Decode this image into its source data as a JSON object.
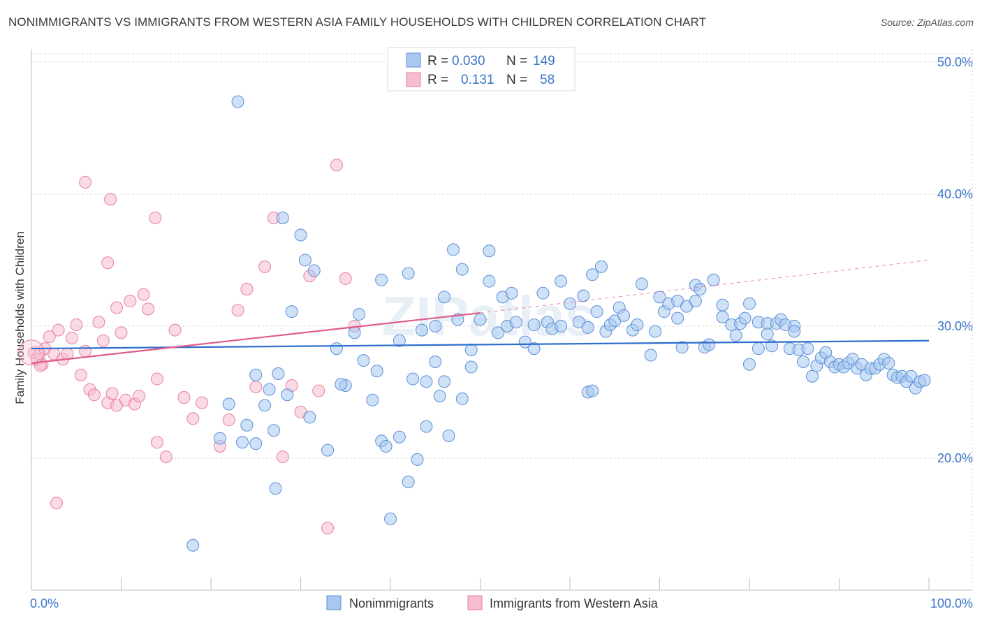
{
  "header": {
    "title": "NONIMMIGRANTS VS IMMIGRANTS FROM WESTERN ASIA FAMILY HOUSEHOLDS WITH CHILDREN CORRELATION CHART",
    "source": "Source: ZipAtlas.com"
  },
  "watermark": "ZIPatlas",
  "legend": {
    "rows": [
      {
        "r_label": "R = ",
        "r_value": "0.030",
        "n_label": "N = ",
        "n_value": "149"
      },
      {
        "r_label": "R = ",
        "r_value": "0.131",
        "n_label": "N = ",
        "n_value": "58"
      }
    ]
  },
  "colors": {
    "blue_fill": "#a8c8f0",
    "blue_stroke": "#5b8fd6",
    "blue_line": "#2f6fcc",
    "pink_fill": "#f6bcd0",
    "pink_stroke": "#e97fa3",
    "pink_line": "#e05a8a",
    "tick_text": "#3a74c8",
    "grid": "#dcdcdc"
  },
  "chart_data": {
    "type": "scatter",
    "title": "NONIMMIGRANTS VS IMMIGRANTS FROM WESTERN ASIA FAMILY HOUSEHOLDS WITH CHILDREN CORRELATION CHART",
    "xlabel": "",
    "ylabel": "Family Households with Children",
    "xlim": [
      0,
      100
    ],
    "ylim": [
      10,
      51
    ],
    "x_tick_labels": [
      "0.0%",
      "100.0%"
    ],
    "y_ticks": [
      20,
      30,
      40,
      50
    ],
    "y_tick_labels": [
      "20.0%",
      "30.0%",
      "40.0%",
      "50.0%"
    ],
    "legend_position": "top-center",
    "series": [
      {
        "name": "Nonimmigrants",
        "R": 0.03,
        "N": 149,
        "trend": {
          "x": [
            0,
            100
          ],
          "y": [
            28.3,
            28.9
          ],
          "style": "solid"
        },
        "points": [
          [
            23,
            47
          ],
          [
            28,
            38.2
          ],
          [
            30,
            36.9
          ],
          [
            30.5,
            35
          ],
          [
            31.5,
            34.2
          ],
          [
            29,
            31.1
          ],
          [
            34,
            28.3
          ],
          [
            36,
            29.5
          ],
          [
            36.5,
            30.9
          ],
          [
            37,
            27.4
          ],
          [
            35,
            25.5
          ],
          [
            34.5,
            25.6
          ],
          [
            38,
            24.4
          ],
          [
            39,
            21.3
          ],
          [
            39.5,
            20.9
          ],
          [
            41,
            21.6
          ],
          [
            42,
            18.2
          ],
          [
            40,
            15.4
          ],
          [
            43,
            19.9
          ],
          [
            42.5,
            26
          ],
          [
            44,
            25.8
          ],
          [
            45,
            27.3
          ],
          [
            45.5,
            24.7
          ],
          [
            46,
            25.8
          ],
          [
            45,
            30
          ],
          [
            43.5,
            29.7
          ],
          [
            41,
            28.9
          ],
          [
            39,
            33.5
          ],
          [
            42,
            34
          ],
          [
            46,
            32.2
          ],
          [
            47,
            35.8
          ],
          [
            48,
            34.3
          ],
          [
            47.5,
            30.5
          ],
          [
            48,
            24.5
          ],
          [
            49,
            28.2
          ],
          [
            49,
            26.9
          ],
          [
            50,
            30.5
          ],
          [
            51,
            35.7
          ],
          [
            51,
            33.4
          ],
          [
            52,
            29.5
          ],
          [
            52.5,
            32.2
          ],
          [
            53,
            30
          ],
          [
            54,
            30.3
          ],
          [
            53.5,
            32.5
          ],
          [
            55,
            28.8
          ],
          [
            56,
            30.1
          ],
          [
            57,
            32.5
          ],
          [
            57.5,
            30.3
          ],
          [
            58,
            29.8
          ],
          [
            59,
            33.4
          ],
          [
            59,
            30
          ],
          [
            60,
            31.7
          ],
          [
            61,
            30.3
          ],
          [
            61.5,
            32.3
          ],
          [
            62,
            29.9
          ],
          [
            62.5,
            33.9
          ],
          [
            63,
            31.1
          ],
          [
            63.5,
            34.5
          ],
          [
            64,
            29.6
          ],
          [
            64.5,
            30.1
          ],
          [
            65,
            30.4
          ],
          [
            65.5,
            31.4
          ],
          [
            66,
            30.8
          ],
          [
            67,
            29.7
          ],
          [
            67.5,
            30.1
          ],
          [
            68,
            33.2
          ],
          [
            69,
            27.8
          ],
          [
            69.5,
            29.6
          ],
          [
            70,
            32.2
          ],
          [
            70.5,
            31.1
          ],
          [
            71,
            31.7
          ],
          [
            72,
            31.9
          ],
          [
            72,
            30.6
          ],
          [
            73,
            31.5
          ],
          [
            74,
            31.9
          ],
          [
            74,
            33.1
          ],
          [
            75,
            28.4
          ],
          [
            75.5,
            28.6
          ],
          [
            76,
            33.5
          ],
          [
            77,
            31.6
          ],
          [
            77,
            30.7
          ],
          [
            78,
            30.1
          ],
          [
            78.5,
            29.3
          ],
          [
            79,
            30.2
          ],
          [
            79.5,
            30.6
          ],
          [
            80,
            27.1
          ],
          [
            80,
            31.7
          ],
          [
            81,
            28.3
          ],
          [
            81,
            30.3
          ],
          [
            82,
            30.2
          ],
          [
            82,
            29.4
          ],
          [
            82.5,
            28.5
          ],
          [
            83,
            30.2
          ],
          [
            83.5,
            30.5
          ],
          [
            84,
            30.1
          ],
          [
            84.5,
            28.3
          ],
          [
            85,
            30
          ],
          [
            85,
            29.6
          ],
          [
            85.5,
            28.2
          ],
          [
            86,
            27.3
          ],
          [
            86.5,
            28.3
          ],
          [
            87,
            26.2
          ],
          [
            87.5,
            27
          ],
          [
            88,
            27.6
          ],
          [
            88.5,
            28
          ],
          [
            89,
            27.3
          ],
          [
            89.5,
            26.9
          ],
          [
            90,
            27.1
          ],
          [
            90.5,
            26.9
          ],
          [
            91,
            27.2
          ],
          [
            91.5,
            27.5
          ],
          [
            92,
            26.8
          ],
          [
            92.5,
            27.1
          ],
          [
            93,
            26.3
          ],
          [
            93.5,
            26.8
          ],
          [
            94,
            26.8
          ],
          [
            94.5,
            27.1
          ],
          [
            95,
            27.5
          ],
          [
            95.5,
            27.2
          ],
          [
            96,
            26.3
          ],
          [
            96.5,
            26.1
          ],
          [
            97,
            26.2
          ],
          [
            97.5,
            25.8
          ],
          [
            98,
            26.2
          ],
          [
            98.5,
            25.3
          ],
          [
            99,
            25.8
          ],
          [
            99.5,
            25.9
          ],
          [
            24,
            22.5
          ],
          [
            25,
            21.1
          ],
          [
            26,
            24
          ],
          [
            26.5,
            25.2
          ],
          [
            27,
            22.1
          ],
          [
            27.5,
            26.4
          ],
          [
            25,
            26.3
          ],
          [
            23.5,
            21.2
          ],
          [
            22,
            24.1
          ],
          [
            21,
            21.5
          ],
          [
            31,
            23.1
          ],
          [
            33,
            20.6
          ],
          [
            27.2,
            17.7
          ],
          [
            18,
            13.4
          ],
          [
            28.5,
            24.8
          ],
          [
            38.5,
            26.6
          ],
          [
            44,
            22.4
          ],
          [
            46.5,
            21.7
          ],
          [
            56,
            28.3
          ],
          [
            62,
            25
          ],
          [
            62.5,
            25.1
          ],
          [
            72.5,
            28.4
          ],
          [
            74.5,
            32.8
          ]
        ]
      },
      {
        "name": "Immigrants from Western Asia",
        "R": 0.131,
        "N": 58,
        "trend": {
          "x": [
            0,
            50
          ],
          "y": [
            27.2,
            31.0
          ],
          "dashed_extension": {
            "x": [
              50,
              100
            ],
            "y": [
              31.0,
              35.0
            ]
          }
        },
        "points": [
          [
            0.3,
            28
          ],
          [
            0.6,
            27.5
          ],
          [
            0.9,
            27.9
          ],
          [
            1.2,
            27.1
          ],
          [
            1.5,
            28.3
          ],
          [
            2,
            29.2
          ],
          [
            2.5,
            27.9
          ],
          [
            3,
            29.7
          ],
          [
            3.5,
            27.5
          ],
          [
            4,
            27.9
          ],
          [
            4.5,
            29.1
          ],
          [
            5,
            30.1
          ],
          [
            5.5,
            26.3
          ],
          [
            6,
            28.1
          ],
          [
            6.5,
            25.2
          ],
          [
            7,
            24.8
          ],
          [
            7.5,
            30.3
          ],
          [
            8,
            28.9
          ],
          [
            8.5,
            24.2
          ],
          [
            9,
            24.9
          ],
          [
            9.5,
            24
          ],
          [
            10,
            29.5
          ],
          [
            10.5,
            24.4
          ],
          [
            11,
            31.9
          ],
          [
            11.5,
            24.1
          ],
          [
            12,
            24.7
          ],
          [
            12.5,
            32.4
          ],
          [
            13,
            31.3
          ],
          [
            14,
            21.2
          ],
          [
            14,
            26
          ],
          [
            15,
            20.1
          ],
          [
            16,
            29.7
          ],
          [
            17,
            24.6
          ],
          [
            18,
            23
          ],
          [
            19,
            24.2
          ],
          [
            21,
            20.9
          ],
          [
            22,
            22.9
          ],
          [
            23,
            31.2
          ],
          [
            24,
            32.8
          ],
          [
            25,
            25.4
          ],
          [
            26,
            34.5
          ],
          [
            27,
            38.2
          ],
          [
            28,
            20.1
          ],
          [
            29,
            25.5
          ],
          [
            30,
            23.5
          ],
          [
            31,
            33.8
          ],
          [
            32,
            25.1
          ],
          [
            33,
            14.7
          ],
          [
            34,
            42.2
          ],
          [
            35,
            33.6
          ],
          [
            36,
            30
          ],
          [
            6,
            40.9
          ],
          [
            8.5,
            34.8
          ],
          [
            8.8,
            39.6
          ],
          [
            13.8,
            38.2
          ],
          [
            9.5,
            31.4
          ],
          [
            2.8,
            16.6
          ],
          [
            1,
            27
          ]
        ]
      }
    ]
  },
  "bottom_legend": {
    "items": [
      {
        "label": "Nonimmigrants"
      },
      {
        "label": "Immigrants from Western Asia"
      }
    ]
  }
}
